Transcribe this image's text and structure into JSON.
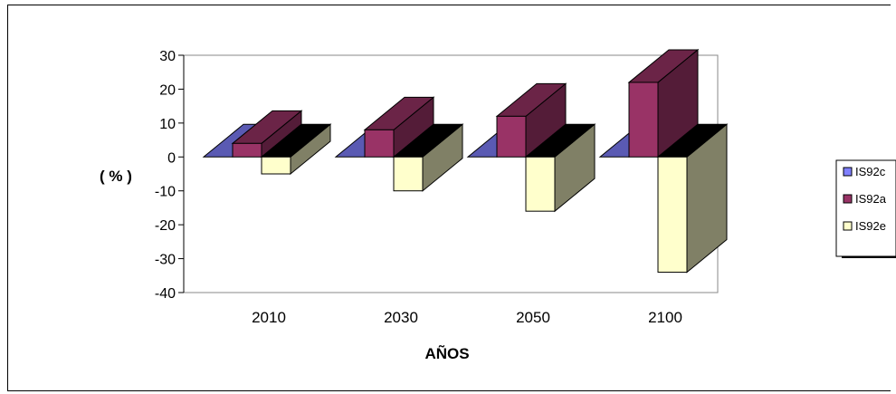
{
  "chart_data": {
    "type": "bar",
    "categories": [
      "2010",
      "2030",
      "2050",
      "2100"
    ],
    "series": [
      {
        "name": "IS92c",
        "values": [
          0,
          0,
          0,
          0
        ],
        "color": "#8080ff"
      },
      {
        "name": "IS92a",
        "values": [
          4,
          8,
          12,
          22
        ],
        "color": "#993366"
      },
      {
        "name": "IS92e",
        "values": [
          -5,
          -10,
          -16,
          -34
        ],
        "color": "#ffffcc"
      }
    ],
    "ylabel": "( % )",
    "xlabel": "AÑOS",
    "ylim": [
      -40,
      30
    ],
    "yticks": [
      "30",
      "20",
      "10",
      "0",
      "-10",
      "-20",
      "-30",
      "-40"
    ],
    "legend_position": "right",
    "grid": false
  }
}
